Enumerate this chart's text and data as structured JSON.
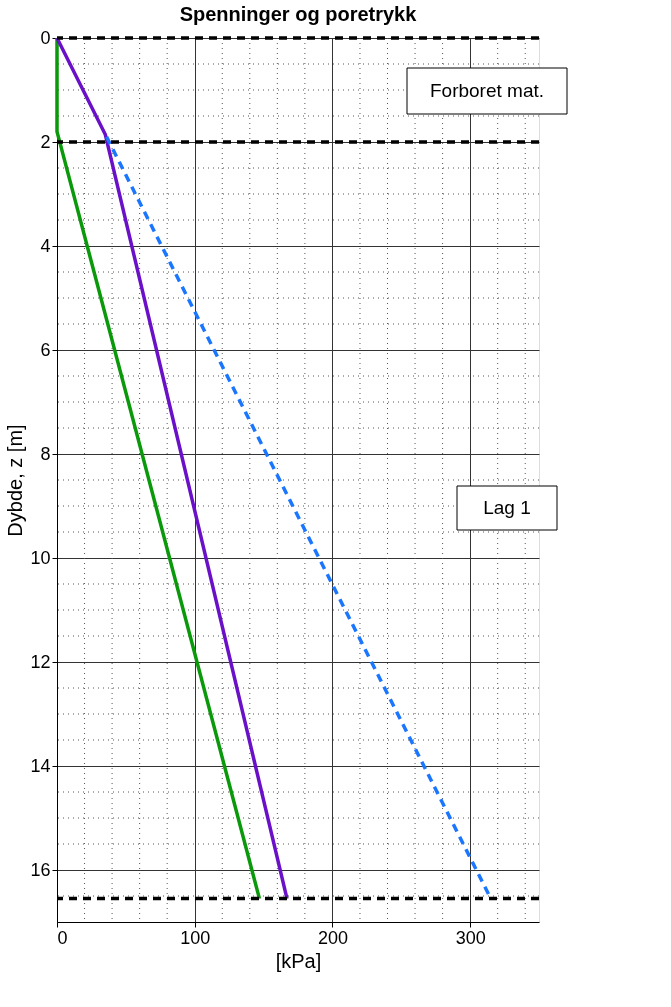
{
  "chart_data": {
    "type": "line",
    "title": "Spenninger og poretrykk",
    "xlabel": "[kPa]",
    "ylabel": "Dybde, z [m]",
    "xlim": [
      0,
      350
    ],
    "xticks": [
      0,
      100,
      200,
      300
    ],
    "ylim": [
      17,
      0
    ],
    "yticks": [
      0,
      2,
      4,
      6,
      8,
      10,
      12,
      14,
      16
    ],
    "grid": true,
    "series": [
      {
        "color": "#0a990a",
        "x": [
          0,
          0,
          147
        ],
        "values": [
          0,
          1.8,
          16.55
        ],
        "line_style": "solid"
      },
      {
        "color": "#6a10c8",
        "x": [
          0,
          35,
          167
        ],
        "values": [
          0,
          1.85,
          16.55
        ],
        "line_style": "solid"
      },
      {
        "color": "#1a75ff",
        "x": [
          36,
          315
        ],
        "values": [
          1.9,
          16.55
        ],
        "line_style": "dashed"
      }
    ],
    "ref_lines": [
      {
        "axis": "y",
        "value": 0,
        "color": "#000000",
        "line_style": "dashed"
      },
      {
        "axis": "y",
        "value": 2,
        "color": "#000000",
        "line_style": "dashed"
      },
      {
        "axis": "y",
        "value": 16.55,
        "color": "#000000",
        "line_style": "dashed"
      }
    ],
    "annotations": [
      "Forboret mat.",
      "Lag 1"
    ]
  }
}
